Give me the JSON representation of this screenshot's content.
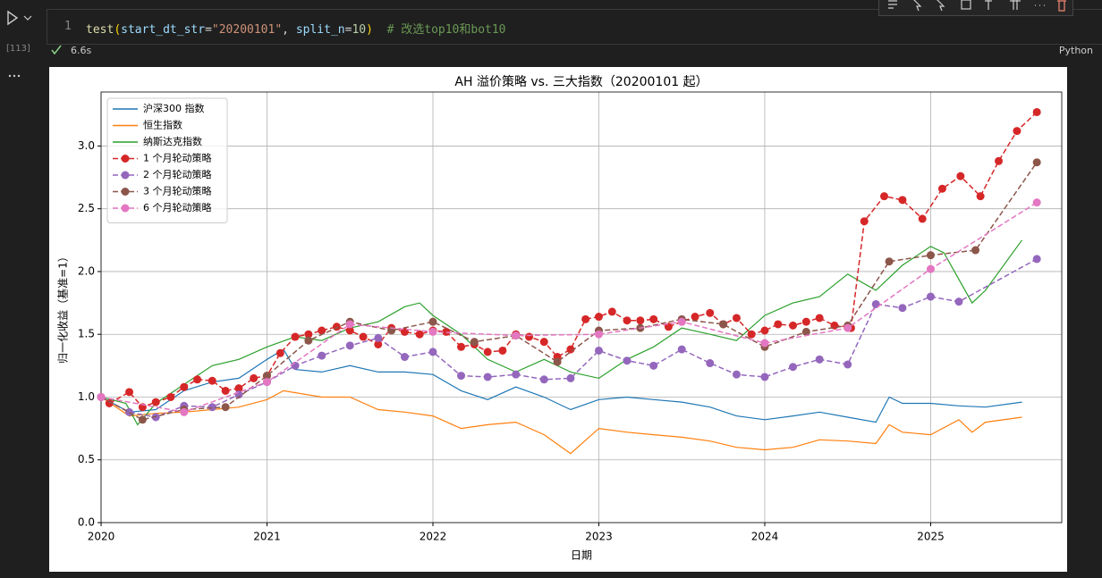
{
  "cell": {
    "execution_count": "[113]",
    "line_number": "1",
    "code_tokens": [
      "test",
      "(",
      "start_dt_str",
      "=",
      "\"20200101\"",
      ", ",
      "split_n",
      "=",
      "10",
      ")",
      "  # 改选top10和bot10"
    ],
    "duration": "6.6s",
    "language": "Python"
  },
  "chart_data": {
    "type": "line",
    "title": "AH 溢价策略 vs. 三大指数（20200101 起）",
    "xlabel": "日期",
    "ylabel": "归一化收益（基准=1）",
    "xlim": [
      2020,
      2025.79
    ],
    "xticks": [
      2020,
      2021,
      2022,
      2023,
      2024,
      2025
    ],
    "ylim": [
      0,
      3.43
    ],
    "yticks": [
      {
        "value": 0,
        "label": "0.0"
      },
      0.5,
      {
        "value": 1,
        "label": "1.0"
      },
      1.5,
      {
        "value": 2,
        "label": "2.0"
      },
      2.5,
      {
        "value": 3,
        "label": "3.0"
      }
    ],
    "grid": true,
    "legend": "upper left",
    "series": [
      {
        "name": "沪深300 指数",
        "color": "#1f77b4",
        "linestyle": "solid",
        "x": [
          2020.0,
          2020.17,
          2020.33,
          2020.5,
          2020.67,
          2020.83,
          2021.0,
          2021.1,
          2021.17,
          2021.33,
          2021.5,
          2021.67,
          2021.83,
          2022.0,
          2022.17,
          2022.33,
          2022.5,
          2022.67,
          2022.83,
          2023.0,
          2023.17,
          2023.33,
          2023.5,
          2023.67,
          2023.83,
          2024.0,
          2024.17,
          2024.33,
          2024.5,
          2024.67,
          2024.75,
          2024.83,
          2025.0,
          2025.17,
          2025.33,
          2025.55
        ],
        "values": [
          1.0,
          0.88,
          0.9,
          1.05,
          1.12,
          1.15,
          1.3,
          1.38,
          1.22,
          1.2,
          1.25,
          1.2,
          1.2,
          1.18,
          1.05,
          0.98,
          1.08,
          1.0,
          0.9,
          0.98,
          1.0,
          0.98,
          0.96,
          0.92,
          0.85,
          0.82,
          0.85,
          0.88,
          0.84,
          0.8,
          1.0,
          0.95,
          0.95,
          0.93,
          0.92,
          0.96
        ]
      },
      {
        "name": "恒生指数",
        "color": "#ff7f0e",
        "linestyle": "solid",
        "x": [
          2020.0,
          2020.17,
          2020.33,
          2020.5,
          2020.67,
          2020.83,
          2021.0,
          2021.1,
          2021.33,
          2021.5,
          2021.67,
          2021.83,
          2022.0,
          2022.17,
          2022.33,
          2022.5,
          2022.67,
          2022.83,
          2023.0,
          2023.17,
          2023.33,
          2023.5,
          2023.67,
          2023.83,
          2024.0,
          2024.17,
          2024.33,
          2024.5,
          2024.67,
          2024.75,
          2024.83,
          2025.0,
          2025.17,
          2025.25,
          2025.33,
          2025.55
        ],
        "values": [
          1.0,
          0.85,
          0.87,
          0.88,
          0.9,
          0.92,
          0.98,
          1.05,
          1.0,
          1.0,
          0.9,
          0.88,
          0.85,
          0.75,
          0.78,
          0.8,
          0.7,
          0.55,
          0.75,
          0.72,
          0.7,
          0.68,
          0.65,
          0.6,
          0.58,
          0.6,
          0.66,
          0.65,
          0.63,
          0.78,
          0.72,
          0.7,
          0.82,
          0.72,
          0.8,
          0.84
        ]
      },
      {
        "name": "纳斯达克指数",
        "color": "#2ca02c",
        "linestyle": "solid",
        "x": [
          2020.0,
          2020.15,
          2020.22,
          2020.33,
          2020.5,
          2020.67,
          2020.83,
          2021.0,
          2021.17,
          2021.33,
          2021.5,
          2021.67,
          2021.83,
          2021.92,
          2022.0,
          2022.17,
          2022.33,
          2022.5,
          2022.67,
          2022.83,
          2023.0,
          2023.17,
          2023.33,
          2023.5,
          2023.67,
          2023.83,
          2024.0,
          2024.17,
          2024.33,
          2024.5,
          2024.67,
          2024.83,
          2025.0,
          2025.08,
          2025.25,
          2025.33,
          2025.55
        ],
        "values": [
          1.0,
          0.95,
          0.78,
          0.95,
          1.1,
          1.25,
          1.3,
          1.4,
          1.48,
          1.45,
          1.55,
          1.6,
          1.72,
          1.75,
          1.65,
          1.5,
          1.3,
          1.2,
          1.3,
          1.2,
          1.15,
          1.3,
          1.4,
          1.55,
          1.5,
          1.45,
          1.65,
          1.75,
          1.8,
          1.98,
          1.85,
          2.05,
          2.2,
          2.15,
          1.75,
          1.85,
          2.25
        ]
      },
      {
        "name": "1 个月轮动策略",
        "color": "#d62728",
        "linestyle": "dashed",
        "marker": "o",
        "x": [
          2020.05,
          2020.17,
          2020.25,
          2020.33,
          2020.42,
          2020.5,
          2020.58,
          2020.67,
          2020.75,
          2020.83,
          2020.92,
          2021.0,
          2021.08,
          2021.17,
          2021.25,
          2021.33,
          2021.42,
          2021.5,
          2021.58,
          2021.67,
          2021.75,
          2021.83,
          2021.92,
          2022.0,
          2022.08,
          2022.17,
          2022.25,
          2022.33,
          2022.42,
          2022.5,
          2022.58,
          2022.67,
          2022.75,
          2022.83,
          2022.92,
          2023.0,
          2023.08,
          2023.17,
          2023.25,
          2023.33,
          2023.42,
          2023.5,
          2023.58,
          2023.67,
          2023.75,
          2023.83,
          2023.92,
          2024.0,
          2024.08,
          2024.17,
          2024.25,
          2024.33,
          2024.42,
          2024.5,
          2024.52,
          2024.6,
          2024.72,
          2024.83,
          2024.95,
          2025.07,
          2025.18,
          2025.3,
          2025.41,
          2025.52,
          2025.64
        ],
        "values": [
          0.95,
          1.04,
          0.92,
          0.96,
          1.0,
          1.08,
          1.14,
          1.13,
          1.05,
          1.07,
          1.15,
          1.17,
          1.35,
          1.48,
          1.5,
          1.53,
          1.56,
          1.53,
          1.48,
          1.42,
          1.55,
          1.52,
          1.5,
          1.53,
          1.52,
          1.4,
          1.42,
          1.36,
          1.37,
          1.5,
          1.48,
          1.44,
          1.32,
          1.38,
          1.62,
          1.64,
          1.68,
          1.61,
          1.61,
          1.62,
          1.56,
          1.6,
          1.64,
          1.67,
          1.58,
          1.63,
          1.5,
          1.53,
          1.58,
          1.57,
          1.6,
          1.63,
          1.57,
          1.56,
          1.55,
          2.4,
          2.6,
          2.57,
          2.42,
          2.66,
          2.76,
          2.6,
          2.88,
          3.12,
          3.27
        ]
      },
      {
        "name": "2 个月轮动策略",
        "color": "#9467bd",
        "linestyle": "dashed",
        "marker": "o",
        "x": [
          2020.0,
          2020.17,
          2020.33,
          2020.5,
          2020.67,
          2020.83,
          2021.0,
          2021.17,
          2021.33,
          2021.5,
          2021.67,
          2021.83,
          2022.0,
          2022.17,
          2022.33,
          2022.5,
          2022.67,
          2022.83,
          2023.0,
          2023.17,
          2023.33,
          2023.5,
          2023.67,
          2023.83,
          2024.0,
          2024.17,
          2024.33,
          2024.5,
          2024.67,
          2024.83,
          2025.0,
          2025.17,
          2025.64
        ],
        "values": [
          1.0,
          0.88,
          0.84,
          0.93,
          0.92,
          1.02,
          1.12,
          1.25,
          1.33,
          1.41,
          1.47,
          1.32,
          1.36,
          1.17,
          1.16,
          1.18,
          1.14,
          1.15,
          1.37,
          1.29,
          1.25,
          1.38,
          1.27,
          1.18,
          1.16,
          1.24,
          1.3,
          1.26,
          1.74,
          1.71,
          1.8,
          1.76,
          2.1
        ]
      },
      {
        "name": "3 个月轮动策略",
        "color": "#8c564b",
        "linestyle": "dashed",
        "marker": "o",
        "x": [
          2020.0,
          2020.25,
          2020.5,
          2020.75,
          2021.0,
          2021.25,
          2021.5,
          2021.75,
          2022.0,
          2022.25,
          2022.5,
          2022.75,
          2023.0,
          2023.25,
          2023.5,
          2023.75,
          2024.0,
          2024.25,
          2024.5,
          2024.75,
          2025.0,
          2025.27,
          2025.64
        ],
        "values": [
          1.0,
          0.82,
          0.9,
          0.92,
          1.17,
          1.45,
          1.6,
          1.53,
          1.6,
          1.44,
          1.49,
          1.28,
          1.53,
          1.55,
          1.62,
          1.58,
          1.4,
          1.52,
          1.57,
          2.08,
          2.13,
          2.17,
          2.87
        ]
      },
      {
        "name": "6 个月轮动策略",
        "color": "#e377c2",
        "linestyle": "dashed",
        "marker": "o",
        "x": [
          2020.0,
          2020.5,
          2021.0,
          2021.5,
          2022.0,
          2022.5,
          2023.0,
          2023.5,
          2024.0,
          2024.5,
          2025.0,
          2025.64
        ],
        "values": [
          1.0,
          0.88,
          1.12,
          1.58,
          1.52,
          1.49,
          1.5,
          1.6,
          1.43,
          1.55,
          2.02,
          2.55
        ]
      }
    ]
  }
}
